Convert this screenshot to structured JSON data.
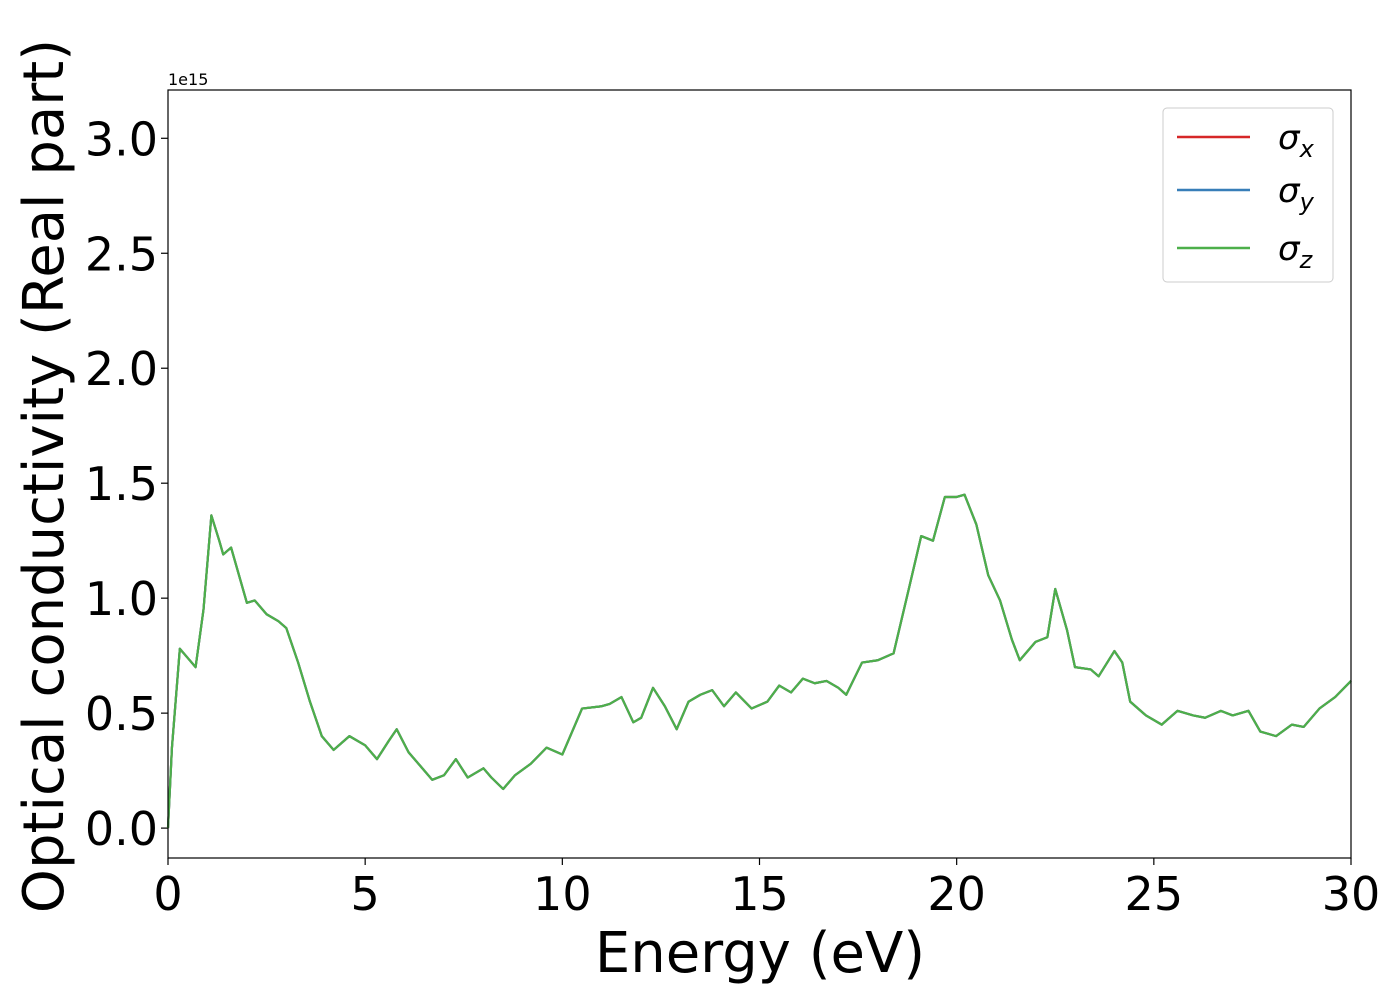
{
  "chart_data": {
    "type": "line",
    "xlabel": "Energy (eV)",
    "ylabel": "Optical conductivity (Real part)",
    "y_offset_label": "1e15",
    "x": [
      0,
      0.1,
      0.3,
      0.5,
      0.7,
      0.9,
      1.1,
      1.3,
      1.4,
      1.6,
      1.8,
      2.0,
      2.2,
      2.5,
      2.8,
      3.0,
      3.3,
      3.6,
      3.9,
      4.2,
      4.6,
      5.0,
      5.3,
      5.6,
      5.8,
      6.1,
      6.4,
      6.7,
      7.0,
      7.3,
      7.6,
      8.0,
      8.2,
      8.5,
      8.8,
      9.2,
      9.6,
      10.0,
      10.2,
      10.5,
      11.0,
      11.2,
      11.5,
      11.8,
      12.0,
      12.3,
      12.6,
      12.9,
      13.2,
      13.5,
      13.8,
      14.1,
      14.4,
      14.8,
      15.2,
      15.5,
      15.8,
      16.1,
      16.4,
      16.7,
      17.0,
      17.2,
      17.6,
      18.0,
      18.4,
      18.8,
      19.1,
      19.4,
      19.7,
      20.0,
      20.2,
      20.5,
      20.8,
      21.1,
      21.4,
      21.6,
      22.0,
      22.3,
      22.5,
      22.8,
      23.0,
      23.4,
      23.6,
      24.0,
      24.2,
      24.4,
      24.8,
      25.2,
      25.6,
      26.0,
      26.3,
      26.7,
      27.0,
      27.4,
      27.7,
      28.1,
      28.5,
      28.8,
      29.2,
      29.6,
      30.0
    ],
    "series": [
      {
        "name": "σx",
        "color": "#d62728",
        "values": [
          0,
          0.35,
          0.78,
          0.74,
          0.7,
          0.95,
          1.36,
          1.25,
          1.19,
          1.22,
          1.1,
          0.98,
          0.99,
          0.93,
          0.9,
          0.87,
          0.72,
          0.55,
          0.4,
          0.34,
          0.4,
          0.36,
          0.3,
          0.38,
          0.43,
          0.33,
          0.27,
          0.21,
          0.23,
          0.3,
          0.22,
          0.26,
          0.22,
          0.17,
          0.23,
          0.28,
          0.35,
          0.32,
          0.4,
          0.52,
          0.53,
          0.54,
          0.57,
          0.46,
          0.48,
          0.61,
          0.53,
          0.43,
          0.55,
          0.58,
          0.6,
          0.53,
          0.59,
          0.52,
          0.55,
          0.62,
          0.59,
          0.65,
          0.63,
          0.64,
          0.61,
          0.58,
          0.72,
          0.73,
          0.76,
          1.05,
          1.27,
          1.25,
          1.44,
          1.44,
          1.45,
          1.32,
          1.1,
          0.99,
          0.82,
          0.73,
          0.81,
          0.83,
          1.04,
          0.86,
          0.7,
          0.69,
          0.66,
          0.77,
          0.72,
          0.55,
          0.49,
          0.45,
          0.51,
          0.49,
          0.48,
          0.51,
          0.49,
          0.51,
          0.42,
          0.4,
          0.45,
          0.44,
          0.52,
          0.57,
          0.64
        ]
      },
      {
        "name": "σy",
        "color": "#377eb8",
        "values": [
          0,
          0.35,
          0.78,
          0.74,
          0.7,
          0.95,
          1.36,
          1.25,
          1.19,
          1.22,
          1.1,
          0.98,
          0.99,
          0.93,
          0.9,
          0.87,
          0.72,
          0.55,
          0.4,
          0.34,
          0.4,
          0.36,
          0.3,
          0.38,
          0.43,
          0.33,
          0.27,
          0.21,
          0.23,
          0.3,
          0.22,
          0.26,
          0.22,
          0.17,
          0.23,
          0.28,
          0.35,
          0.32,
          0.4,
          0.52,
          0.53,
          0.54,
          0.57,
          0.46,
          0.48,
          0.61,
          0.53,
          0.43,
          0.55,
          0.58,
          0.6,
          0.53,
          0.59,
          0.52,
          0.55,
          0.62,
          0.59,
          0.65,
          0.63,
          0.64,
          0.61,
          0.58,
          0.72,
          0.73,
          0.76,
          1.05,
          1.27,
          1.25,
          1.44,
          1.44,
          1.45,
          1.32,
          1.1,
          0.99,
          0.82,
          0.73,
          0.81,
          0.83,
          1.04,
          0.86,
          0.7,
          0.69,
          0.66,
          0.77,
          0.72,
          0.55,
          0.49,
          0.45,
          0.51,
          0.49,
          0.48,
          0.51,
          0.49,
          0.51,
          0.42,
          0.4,
          0.45,
          0.44,
          0.52,
          0.57,
          0.64
        ]
      },
      {
        "name": "σz",
        "color": "#4daf4a",
        "values": [
          0,
          0.35,
          0.78,
          0.74,
          0.7,
          0.95,
          1.36,
          1.25,
          1.19,
          1.22,
          1.1,
          0.98,
          0.99,
          0.93,
          0.9,
          0.87,
          0.72,
          0.55,
          0.4,
          0.34,
          0.4,
          0.36,
          0.3,
          0.38,
          0.43,
          0.33,
          0.27,
          0.21,
          0.23,
          0.3,
          0.22,
          0.26,
          0.22,
          0.17,
          0.23,
          0.28,
          0.35,
          0.32,
          0.4,
          0.52,
          0.53,
          0.54,
          0.57,
          0.46,
          0.48,
          0.61,
          0.53,
          0.43,
          0.55,
          0.58,
          0.6,
          0.53,
          0.59,
          0.52,
          0.55,
          0.62,
          0.59,
          0.65,
          0.63,
          0.64,
          0.61,
          0.58,
          0.72,
          0.73,
          0.76,
          1.05,
          1.27,
          1.25,
          1.44,
          1.44,
          1.45,
          1.32,
          1.1,
          0.99,
          0.82,
          0.73,
          0.81,
          0.83,
          1.04,
          0.86,
          0.7,
          0.69,
          0.66,
          0.77,
          0.72,
          0.55,
          0.49,
          0.45,
          0.51,
          0.49,
          0.48,
          0.51,
          0.49,
          0.51,
          0.42,
          0.4,
          0.45,
          0.44,
          0.52,
          0.57,
          0.64
        ]
      }
    ],
    "xlim": [
      0,
      30
    ],
    "xticks": [
      0,
      5,
      10,
      15,
      20,
      25,
      30
    ],
    "ylim": [
      -0.13,
      3.21
    ],
    "yticks": [
      {
        "value": 0,
        "label": "0.0"
      },
      0.5,
      {
        "value": 1,
        "label": "1.0"
      },
      1.5,
      {
        "value": 2,
        "label": "2.0"
      },
      2.5,
      {
        "value": 3,
        "label": "3.0"
      }
    ],
    "legend": "upper right",
    "grid": false
  }
}
